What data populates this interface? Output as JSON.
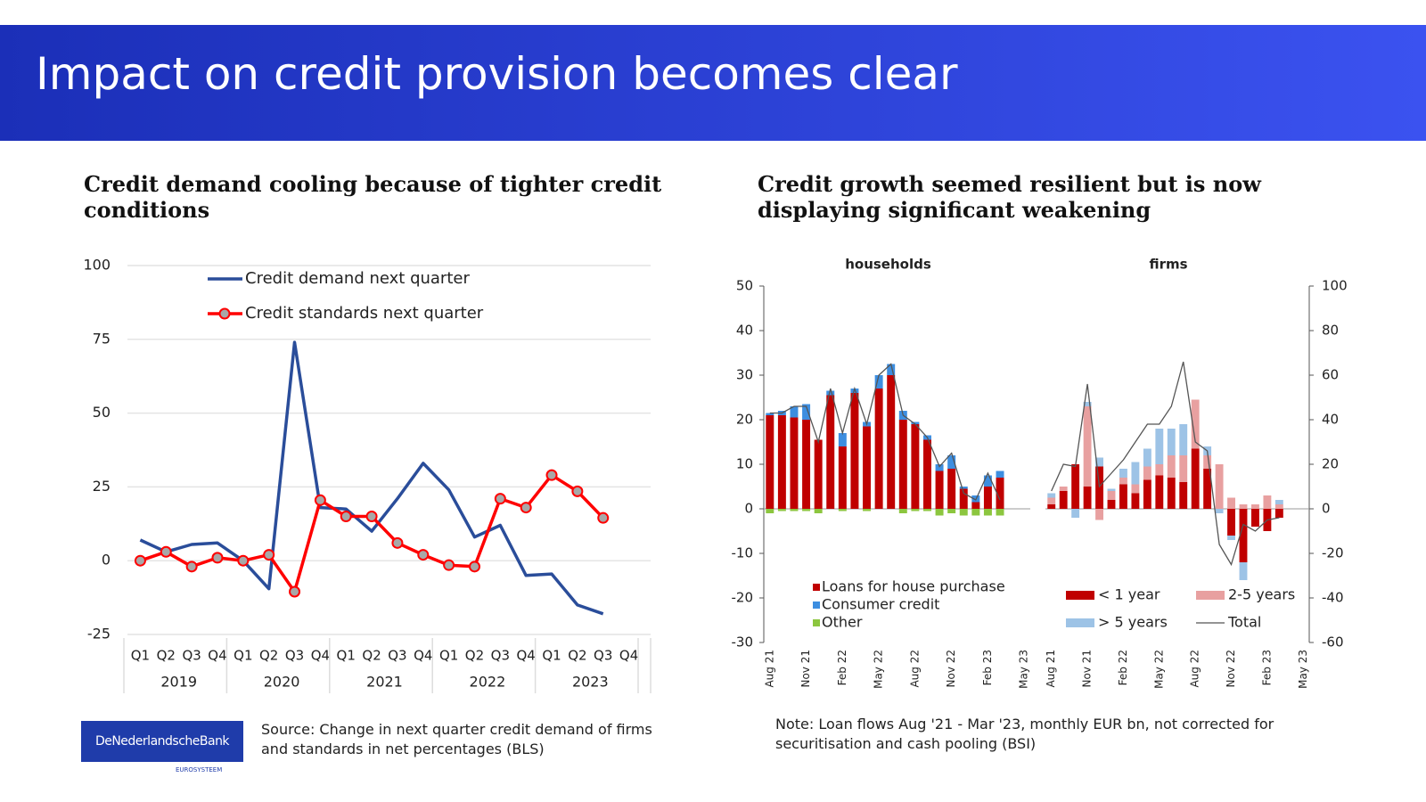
{
  "header": {
    "title": "Impact on credit provision becomes clear"
  },
  "chart_data": [
    {
      "type": "line",
      "title": "Credit demand cooling because of tighter credit conditions",
      "categories": [
        "Q1",
        "Q2",
        "Q3",
        "Q4",
        "Q1",
        "Q2",
        "Q3",
        "Q4",
        "Q1",
        "Q2",
        "Q3",
        "Q4",
        "Q1",
        "Q2",
        "Q3",
        "Q4",
        "Q1",
        "Q2",
        "Q3",
        "Q4"
      ],
      "groups": [
        "2019",
        "2020",
        "2021",
        "2022",
        "2023"
      ],
      "series": [
        {
          "name": "Credit demand next quarter",
          "color": "#2a4d9a",
          "marker": false,
          "values": [
            7,
            3,
            5.5,
            6,
            0,
            -9.5,
            74,
            18,
            17.5,
            10,
            21,
            33,
            24,
            8,
            12,
            -5,
            -4.5,
            -15,
            -18,
            null
          ]
        },
        {
          "name": "Credit standards next quarter",
          "color": "#ff0000",
          "marker": true,
          "values": [
            0,
            3,
            -2,
            1,
            0,
            2,
            -10.5,
            20.5,
            15,
            15,
            6,
            2,
            -1.5,
            -2,
            21,
            18,
            29,
            23.5,
            14.5,
            null
          ]
        }
      ],
      "ylim": [
        -25,
        100
      ],
      "yticks": [
        -25,
        0,
        25,
        50,
        75,
        100
      ],
      "grid": true,
      "legend": "top"
    },
    {
      "type": "bar",
      "title": "Credit growth seemed resilient but is now displaying significant weakening",
      "subtitle": "households",
      "categories": [
        "Aug 21",
        null,
        null,
        "Nov 21",
        null,
        null,
        "Feb 22",
        null,
        null,
        "May 22",
        null,
        null,
        "Aug 22",
        null,
        null,
        "Nov 22",
        null,
        null,
        "Feb 23",
        null,
        null,
        "May 23"
      ],
      "series": [
        {
          "name": "Loans for house purchase",
          "color": "#c00000",
          "values": [
            21,
            21,
            20.5,
            20,
            15.5,
            25.5,
            14,
            26,
            18.5,
            27,
            30,
            20,
            19,
            15.5,
            8.5,
            9,
            4.5,
            1.5,
            5,
            7,
            null,
            null
          ]
        },
        {
          "name": "Consumer credit",
          "color": "#3d8ee0",
          "values": [
            0.5,
            1,
            2.5,
            3.5,
            0,
            1,
            3,
            1,
            1,
            3,
            2.5,
            2,
            0.5,
            1,
            1.5,
            3,
            0.5,
            1.5,
            2.5,
            1.5,
            null,
            null
          ]
        },
        {
          "name": "Other",
          "color": "#8cc63f",
          "values": [
            -1,
            -0.5,
            -0.5,
            -0.5,
            -1,
            0,
            -0.5,
            0,
            -0.5,
            0,
            0,
            -1,
            -0.5,
            -0.5,
            -1.5,
            -1,
            -1.5,
            -1.5,
            -1.5,
            -1.5,
            null,
            null
          ]
        },
        {
          "type": "line",
          "color": "#555555",
          "values": [
            21.5,
            21.5,
            23,
            23,
            15,
            27,
            17,
            27,
            19,
            30,
            32.5,
            21,
            19,
            16,
            9.5,
            12.5,
            3.5,
            2,
            8,
            2,
            null,
            null
          ]
        }
      ],
      "ylim": [
        -30,
        50
      ],
      "yticks": [
        -30,
        -20,
        -10,
        0,
        10,
        20,
        30,
        40,
        50
      ],
      "grid": false,
      "legend": "bottom-left"
    },
    {
      "type": "bar",
      "subtitle": "firms",
      "categories": [
        "Aug 21",
        null,
        null,
        "Nov 21",
        null,
        null,
        "Feb 22",
        null,
        null,
        "May 22",
        null,
        null,
        "Aug 22",
        null,
        null,
        "Nov 22",
        null,
        null,
        "Feb 23",
        null,
        null,
        "May 23"
      ],
      "series": [
        {
          "name": "< 1 year",
          "color": "#c00000",
          "axis": "y2",
          "values": [
            2,
            8,
            20,
            10,
            19,
            4,
            11,
            7,
            13,
            15,
            14,
            12,
            27,
            18,
            0,
            -12,
            -24,
            -8,
            -10,
            -4,
            null,
            null
          ]
        },
        {
          "name": "2-5 years",
          "color": "#e8a0a0",
          "axis": "y2",
          "values": [
            3,
            2,
            0,
            36,
            -5,
            4,
            3,
            4,
            6,
            5,
            10,
            12,
            22,
            6,
            20,
            5,
            2,
            2,
            6,
            2,
            null,
            null
          ]
        },
        {
          "name": "> 5 years",
          "color": "#9dc3e6",
          "axis": "y2",
          "values": [
            2,
            0,
            -4,
            2,
            4,
            1,
            4,
            10,
            8,
            16,
            12,
            14,
            0,
            4,
            -2,
            -2,
            -8,
            0,
            0,
            2,
            null,
            null
          ]
        },
        {
          "name": "Total",
          "type": "line",
          "color": "#555555",
          "axis": "y2",
          "values": [
            8,
            20,
            19,
            56,
            10,
            16,
            22,
            30,
            38,
            38,
            46,
            66,
            30,
            26,
            -16,
            -25,
            -7,
            -10,
            -5,
            -4,
            null,
            null
          ]
        }
      ],
      "y2lim": [
        -60,
        100
      ],
      "y2ticks": [
        -60,
        -40,
        -20,
        0,
        20,
        40,
        60,
        80,
        100
      ],
      "grid": false,
      "legend": "bottom"
    }
  ],
  "source": "Source: Change in next quarter credit demand of firms and standards in net percentages (BLS)",
  "note": "Note: Loan flows Aug '21 - Mar '23, monthly EUR bn, not corrected for securitisation and cash pooling (BSI)",
  "logo": {
    "name": "DeNederlandscheBank",
    "sub": "EUROSYSTEEM"
  }
}
